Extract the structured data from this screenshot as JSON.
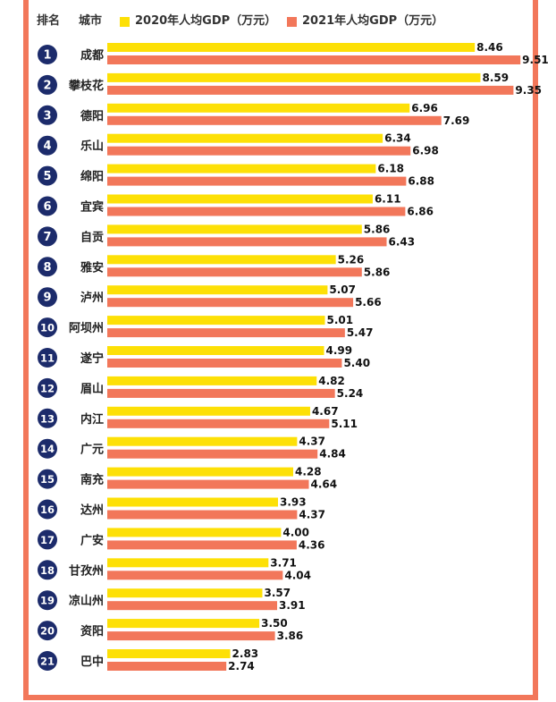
{
  "header": {
    "rank_label": "排名",
    "city_label": "城市"
  },
  "colors": {
    "series_2020": "#fde006",
    "series_2021": "#f2775a",
    "rank_circle": "#1c2b6b",
    "frame": "#f2775a"
  },
  "chart_data": {
    "type": "bar",
    "orientation": "horizontal",
    "categories": [
      "成都",
      "攀枝花",
      "德阳",
      "乐山",
      "绵阳",
      "宜宾",
      "自贡",
      "雅安",
      "泸州",
      "阿坝州",
      "遂宁",
      "眉山",
      "内江",
      "广元",
      "南充",
      "达州",
      "广安",
      "甘孜州",
      "凉山州",
      "资阳",
      "巴中"
    ],
    "ranks": [
      "1",
      "2",
      "3",
      "4",
      "5",
      "6",
      "7",
      "8",
      "9",
      "10",
      "11",
      "12",
      "13",
      "14",
      "15",
      "16",
      "17",
      "18",
      "19",
      "20",
      "21"
    ],
    "series": [
      {
        "name": "2020年人均GDP（万元）",
        "color": "#fde006",
        "values": [
          "8.46",
          "8.59",
          "6.96",
          "6.34",
          "6.18",
          "6.11",
          "5.86",
          "5.26",
          "5.07",
          "5.01",
          "4.99",
          "4.82",
          "4.67",
          "4.37",
          "4.28",
          "3.93",
          "4.00",
          "3.71",
          "3.57",
          "3.50",
          "2.83"
        ]
      },
      {
        "name": "2021年人均GDP（万元）",
        "color": "#f2775a",
        "values": [
          "9.51",
          "9.35",
          "7.69",
          "6.98",
          "6.88",
          "6.86",
          "6.43",
          "5.86",
          "5.66",
          "5.47",
          "5.40",
          "5.24",
          "5.11",
          "4.84",
          "4.64",
          "4.37",
          "4.36",
          "4.04",
          "3.91",
          "3.86",
          "2.74"
        ]
      }
    ],
    "legend_position": "top",
    "grid": false
  }
}
